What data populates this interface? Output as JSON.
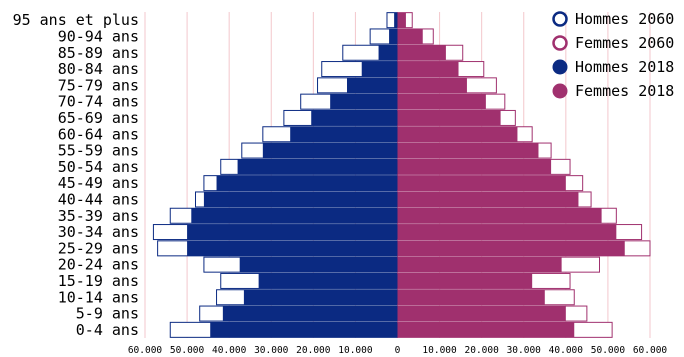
{
  "chart_data": {
    "type": "bar",
    "orientation": "horizontal",
    "layout": "population-pyramid",
    "categories": [
      "0-4 ans",
      "5-9 ans",
      "10-14 ans",
      "15-19 ans",
      "20-24 ans",
      "25-29 ans",
      "30-34 ans",
      "35-39 ans",
      "40-44 ans",
      "45-49 ans",
      "50-54 ans",
      "55-59 ans",
      "60-64 ans",
      "65-69 ans",
      "70-74 ans",
      "75-79 ans",
      "80-84 ans",
      "85-89 ans",
      "90-94 ans",
      "95 ans et plus"
    ],
    "series": [
      {
        "name": "Hommes 2060",
        "side": "left",
        "style": "outline",
        "color": "#0b2a82",
        "values": [
          54000,
          47000,
          43000,
          42000,
          46000,
          57000,
          58000,
          54000,
          48000,
          46000,
          42000,
          37000,
          32000,
          27000,
          23000,
          19000,
          18000,
          13000,
          6500,
          2500
        ]
      },
      {
        "name": "Femmes 2060",
        "side": "right",
        "style": "outline",
        "color": "#a0306e",
        "values": [
          51000,
          45000,
          42000,
          41000,
          48000,
          60000,
          58000,
          52000,
          46000,
          44000,
          41000,
          36500,
          32000,
          28000,
          25500,
          23500,
          20500,
          15500,
          8500,
          3500
        ]
      },
      {
        "name": "Hommes 2018",
        "side": "left",
        "style": "filled",
        "color": "#0b2a82",
        "values": [
          44500,
          41500,
          36500,
          33000,
          37500,
          50000,
          50000,
          49000,
          46000,
          43000,
          38000,
          32000,
          25500,
          20500,
          16000,
          12000,
          8500,
          4500,
          2000,
          800
        ]
      },
      {
        "name": "Femmes 2018",
        "side": "right",
        "style": "filled",
        "color": "#a0306e",
        "values": [
          42000,
          40000,
          35000,
          32000,
          39000,
          54000,
          52000,
          48500,
          43000,
          40000,
          36500,
          33500,
          28500,
          24500,
          21000,
          16500,
          14500,
          11500,
          6000,
          2000
        ]
      }
    ],
    "xlim": [
      -60000,
      60000
    ],
    "x_ticks": [
      -60000,
      -50000,
      -40000,
      -30000,
      -20000,
      -10000,
      0,
      10000,
      20000,
      30000,
      40000,
      50000,
      60000
    ],
    "x_tick_labels": [
      "60.000",
      "50.000",
      "40.000",
      "30.000",
      "20.000",
      "10.000",
      "0",
      "10.000",
      "20.000",
      "30.000",
      "40.000",
      "50.000",
      "60.000"
    ],
    "grid": "vertical",
    "legend": "top-right",
    "title": "",
    "xlabel": "",
    "ylabel": ""
  }
}
